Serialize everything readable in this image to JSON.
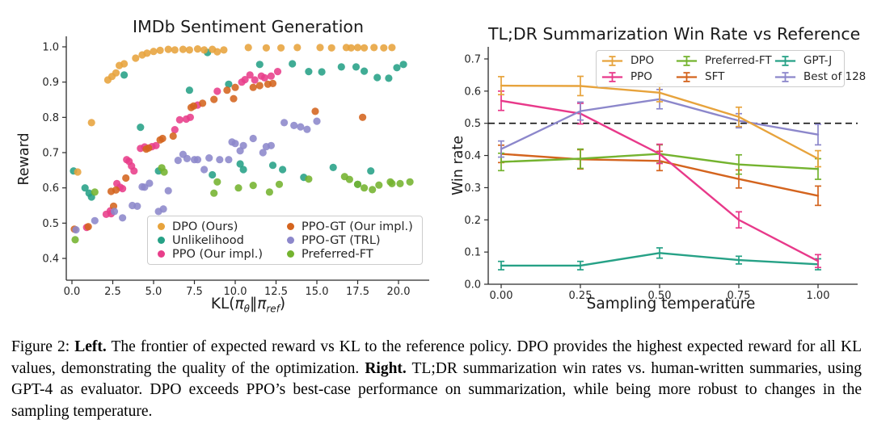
{
  "figure": {
    "caption_segments": [
      {
        "text": "Figure 2: ",
        "bold": false
      },
      {
        "text": "Left.",
        "bold": true
      },
      {
        "text": " The frontier of expected reward vs KL to the reference policy. DPO provides the highest expected reward for all KL values, demonstrating the quality of the optimization. ",
        "bold": false
      },
      {
        "text": "Right.",
        "bold": true
      },
      {
        "text": " TL;DR summarization win rates vs. human-written summaries, using GPT-4 as evaluator. DPO exceeds PPO’s best-case performance on summarization, while being more robust to changes in the sampling temperature.",
        "bold": false
      }
    ]
  },
  "chart_data": [
    {
      "type": "scatter",
      "title": "IMDb Sentiment Generation",
      "xlabel": "KL(πθ‖πref)",
      "xlabel_parts": [
        {
          "t": "KL(",
          "italic": false,
          "sub": false
        },
        {
          "t": "π",
          "italic": true,
          "sub": false
        },
        {
          "t": "θ",
          "italic": true,
          "sub": true
        },
        {
          "t": "‖",
          "italic": false,
          "sub": false
        },
        {
          "t": "π",
          "italic": true,
          "sub": false
        },
        {
          "t": "ref",
          "italic": true,
          "sub": true
        },
        {
          "t": ")",
          "italic": false,
          "sub": false
        }
      ],
      "ylabel": "Reward",
      "xlim": [
        -0.4,
        21.9
      ],
      "ylim": [
        0.338,
        1.03
      ],
      "xticks": [
        0.0,
        2.5,
        5.0,
        7.5,
        10.0,
        12.5,
        15.0,
        17.5,
        20.0
      ],
      "xtick_labels": [
        "0.0",
        "2.5",
        "5.0",
        "7.5",
        "10.0",
        "12.5",
        "15.0",
        "17.5",
        "20.0"
      ],
      "yticks": [
        0.4,
        0.5,
        0.6,
        0.7,
        0.8,
        0.9,
        1.0
      ],
      "ytick_labels": [
        "0.4",
        "0.5",
        "0.6",
        "0.7",
        "0.8",
        "0.9",
        "1.0"
      ],
      "grid": false,
      "legend_position": "lower center, 2 columns",
      "series": [
        {
          "name": "DPO (Ours)",
          "color": "#E7A33C",
          "points": [
            [
              0.35,
              0.645
            ],
            [
              1.2,
              0.785
            ],
            [
              2.2,
              0.906
            ],
            [
              2.45,
              0.916
            ],
            [
              2.7,
              0.926
            ],
            [
              2.9,
              0.947
            ],
            [
              3.2,
              0.952
            ],
            [
              3.9,
              0.968
            ],
            [
              4.3,
              0.977
            ],
            [
              4.6,
              0.982
            ],
            [
              5.0,
              0.987
            ],
            [
              5.4,
              0.99
            ],
            [
              5.9,
              0.993
            ],
            [
              6.3,
              0.991
            ],
            [
              6.8,
              0.993
            ],
            [
              7.2,
              0.991
            ],
            [
              7.7,
              0.994
            ],
            [
              8.1,
              0.991
            ],
            [
              8.6,
              0.993
            ],
            [
              8.9,
              0.986
            ],
            [
              9.3,
              0.991
            ],
            [
              10.8,
              0.998
            ],
            [
              11.9,
              0.997
            ],
            [
              12.8,
              0.997
            ],
            [
              13.8,
              0.998
            ],
            [
              15.2,
              0.998
            ],
            [
              15.9,
              0.997
            ],
            [
              16.8,
              0.998
            ],
            [
              17.1,
              0.997
            ],
            [
              17.5,
              0.998
            ],
            [
              17.9,
              0.997
            ],
            [
              18.5,
              0.998
            ],
            [
              19.1,
              0.997
            ],
            [
              19.6,
              0.998
            ]
          ]
        },
        {
          "name": "Unlikelihood",
          "color": "#26A186",
          "points": [
            [
              0.1,
              0.648
            ],
            [
              0.8,
              0.6
            ],
            [
              1.05,
              0.585
            ],
            [
              1.2,
              0.574
            ],
            [
              3.2,
              0.92
            ],
            [
              4.2,
              0.772
            ],
            [
              5.3,
              0.648
            ],
            [
              7.2,
              0.877
            ],
            [
              8.3,
              0.984
            ],
            [
              8.6,
              0.637
            ],
            [
              9.6,
              0.894
            ],
            [
              10.3,
              0.668
            ],
            [
              10.5,
              0.652
            ],
            [
              11.5,
              0.95
            ],
            [
              12.3,
              0.664
            ],
            [
              12.9,
              0.652
            ],
            [
              13.5,
              0.952
            ],
            [
              14.2,
              0.63
            ],
            [
              14.5,
              0.93
            ],
            [
              15.3,
              0.929
            ],
            [
              16.0,
              0.658
            ],
            [
              16.5,
              0.943
            ],
            [
              17.4,
              0.943
            ],
            [
              17.5,
              0.61
            ],
            [
              17.9,
              0.931
            ],
            [
              18.3,
              0.648
            ],
            [
              18.7,
              0.913
            ],
            [
              19.4,
              0.911
            ],
            [
              19.9,
              0.941
            ],
            [
              20.3,
              0.95
            ]
          ]
        },
        {
          "name": "PPO (Our impl.)",
          "color": "#E83E8A",
          "points": [
            [
              0.9,
              0.488
            ],
            [
              2.1,
              0.525
            ],
            [
              2.35,
              0.535
            ],
            [
              2.4,
              0.527
            ],
            [
              2.75,
              0.612
            ],
            [
              2.95,
              0.602
            ],
            [
              3.1,
              0.598
            ],
            [
              3.35,
              0.68
            ],
            [
              3.5,
              0.675
            ],
            [
              3.65,
              0.662
            ],
            [
              3.8,
              0.648
            ],
            [
              4.2,
              0.712
            ],
            [
              4.45,
              0.716
            ],
            [
              4.9,
              0.717
            ],
            [
              5.15,
              0.72
            ],
            [
              6.3,
              0.765
            ],
            [
              6.6,
              0.793
            ],
            [
              7.0,
              0.795
            ],
            [
              7.25,
              0.8
            ],
            [
              7.7,
              0.835
            ],
            [
              8.9,
              0.874
            ],
            [
              10.4,
              0.9
            ],
            [
              10.6,
              0.907
            ],
            [
              10.9,
              0.92
            ],
            [
              11.2,
              0.906
            ],
            [
              11.6,
              0.917
            ],
            [
              11.8,
              0.912
            ],
            [
              12.2,
              0.917
            ],
            [
              12.6,
              0.93
            ]
          ]
        },
        {
          "name": "PPO-GT (Our impl.)",
          "color": "#D4641E",
          "points": [
            [
              0.15,
              0.483
            ],
            [
              1.0,
              0.49
            ],
            [
              2.4,
              0.59
            ],
            [
              2.55,
              0.548
            ],
            [
              2.7,
              0.594
            ],
            [
              3.3,
              0.628
            ],
            [
              4.55,
              0.71
            ],
            [
              4.7,
              0.713
            ],
            [
              5.4,
              0.736
            ],
            [
              5.55,
              0.74
            ],
            [
              6.2,
              0.747
            ],
            [
              7.3,
              0.828
            ],
            [
              7.45,
              0.832
            ],
            [
              8.0,
              0.84
            ],
            [
              8.7,
              0.851
            ],
            [
              9.5,
              0.877
            ],
            [
              9.9,
              0.853
            ],
            [
              10.0,
              0.885
            ],
            [
              11.1,
              0.885
            ],
            [
              11.5,
              0.89
            ],
            [
              12.0,
              0.894
            ],
            [
              12.3,
              0.896
            ],
            [
              14.9,
              0.817
            ],
            [
              17.8,
              0.8
            ]
          ]
        },
        {
          "name": "PPO-GT (TRL)",
          "color": "#8C87CB",
          "points": [
            [
              0.25,
              0.481
            ],
            [
              1.4,
              0.507
            ],
            [
              2.6,
              0.533
            ],
            [
              3.1,
              0.515
            ],
            [
              3.7,
              0.55
            ],
            [
              4.0,
              0.548
            ],
            [
              4.3,
              0.603
            ],
            [
              4.45,
              0.602
            ],
            [
              4.75,
              0.613
            ],
            [
              5.3,
              0.533
            ],
            [
              5.6,
              0.54
            ],
            [
              5.9,
              0.592
            ],
            [
              6.5,
              0.678
            ],
            [
              6.8,
              0.695
            ],
            [
              7.05,
              0.683
            ],
            [
              7.5,
              0.68
            ],
            [
              7.7,
              0.68
            ],
            [
              8.1,
              0.652
            ],
            [
              8.4,
              0.685
            ],
            [
              9.05,
              0.68
            ],
            [
              9.6,
              0.68
            ],
            [
              9.8,
              0.73
            ],
            [
              10.0,
              0.726
            ],
            [
              10.3,
              0.705
            ],
            [
              10.5,
              0.72
            ],
            [
              11.1,
              0.74
            ],
            [
              11.7,
              0.7
            ],
            [
              11.9,
              0.717
            ],
            [
              12.2,
              0.72
            ],
            [
              13.0,
              0.785
            ],
            [
              13.6,
              0.777
            ],
            [
              14.0,
              0.773
            ],
            [
              14.4,
              0.766
            ],
            [
              15.0,
              0.789
            ]
          ]
        },
        {
          "name": "Preferred-FT",
          "color": "#74B32F",
          "points": [
            [
              0.2,
              0.453
            ],
            [
              1.4,
              0.588
            ],
            [
              5.5,
              0.657
            ],
            [
              5.65,
              0.645
            ],
            [
              8.7,
              0.585
            ],
            [
              8.9,
              0.617
            ],
            [
              10.2,
              0.6
            ],
            [
              11.1,
              0.607
            ],
            [
              12.1,
              0.588
            ],
            [
              12.7,
              0.61
            ],
            [
              14.5,
              0.625
            ],
            [
              16.7,
              0.632
            ],
            [
              17.0,
              0.624
            ],
            [
              17.5,
              0.61
            ],
            [
              17.9,
              0.6
            ],
            [
              18.4,
              0.595
            ],
            [
              18.8,
              0.608
            ],
            [
              19.5,
              0.617
            ],
            [
              19.6,
              0.612
            ],
            [
              20.1,
              0.612
            ],
            [
              20.7,
              0.617
            ]
          ]
        }
      ]
    },
    {
      "type": "line",
      "title": "TL;DR Summarization Win Rate vs Reference",
      "xlabel": "Sampling temperature",
      "ylabel": "Win rate",
      "x": [
        0.0,
        0.25,
        0.5,
        0.75,
        1.0
      ],
      "xtick_labels": [
        "0.00",
        "0.25",
        "0.50",
        "0.75",
        "1.00"
      ],
      "yticks": [
        0.0,
        0.1,
        0.2,
        0.3,
        0.4,
        0.5,
        0.6,
        0.7
      ],
      "ytick_labels": [
        "0.0",
        "0.1",
        "0.2",
        "0.3",
        "0.4",
        "0.5",
        "0.6",
        "0.7"
      ],
      "ylim": [
        0.0,
        0.73
      ],
      "grid": false,
      "reference_line": {
        "y": 0.5,
        "style": "dashed",
        "color": "#111111"
      },
      "legend_position": "upper right, 3 columns",
      "error_bars": true,
      "series": [
        {
          "name": "DPO",
          "color": "#E7A33C",
          "values": [
            0.617,
            0.616,
            0.595,
            0.52,
            0.39
          ],
          "errors": [
            0.028,
            0.03,
            0.028,
            0.03,
            0.025
          ]
        },
        {
          "name": "PPO",
          "color": "#E8398A",
          "values": [
            0.57,
            0.53,
            0.405,
            0.2,
            0.072
          ],
          "errors": [
            0.03,
            0.032,
            0.03,
            0.025,
            0.02
          ]
        },
        {
          "name": "Preferred-FT",
          "color": "#74B32F",
          "values": [
            0.38,
            0.39,
            0.405,
            0.372,
            0.358
          ],
          "errors": [
            0.027,
            0.03,
            0.028,
            0.03,
            0.032
          ]
        },
        {
          "name": "SFT",
          "color": "#D4641E",
          "values": [
            0.405,
            0.388,
            0.383,
            0.327,
            0.275
          ],
          "errors": [
            0.027,
            0.03,
            0.03,
            0.028,
            0.03
          ]
        },
        {
          "name": "GPT-J",
          "color": "#26A186",
          "values": [
            0.058,
            0.058,
            0.097,
            0.075,
            0.062
          ],
          "errors": [
            0.013,
            0.013,
            0.016,
            0.012,
            0.017
          ]
        },
        {
          "name": "Best of 128",
          "color": "#8C87CB",
          "values": [
            0.42,
            0.538,
            0.575,
            0.508,
            0.465
          ],
          "errors": [
            0.025,
            0.028,
            0.03,
            0.022,
            0.032
          ]
        }
      ]
    }
  ]
}
